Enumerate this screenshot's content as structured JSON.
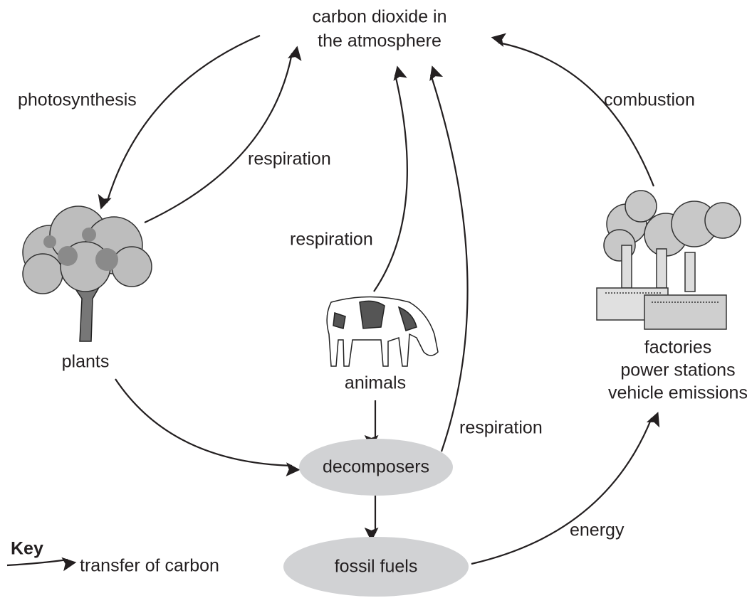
{
  "title": {
    "lines": [
      "carbon dioxide in",
      "the atmosphere"
    ]
  },
  "nodes": [
    {
      "label": "plants"
    },
    {
      "label": "animals"
    },
    {
      "lines": [
        "factories",
        "power stations",
        "vehicle emissions"
      ]
    },
    {
      "label": "decomposers"
    },
    {
      "label": "fossil fuels"
    }
  ],
  "edges": [
    {
      "label": "photosynthesis"
    },
    {
      "label": "respiration"
    },
    {
      "label": "respiration"
    },
    {
      "label": "respiration"
    },
    {
      "label": "combustion"
    },
    {
      "label": "energy"
    }
  ],
  "key": {
    "title": "Key",
    "label": "transfer of carbon"
  }
}
